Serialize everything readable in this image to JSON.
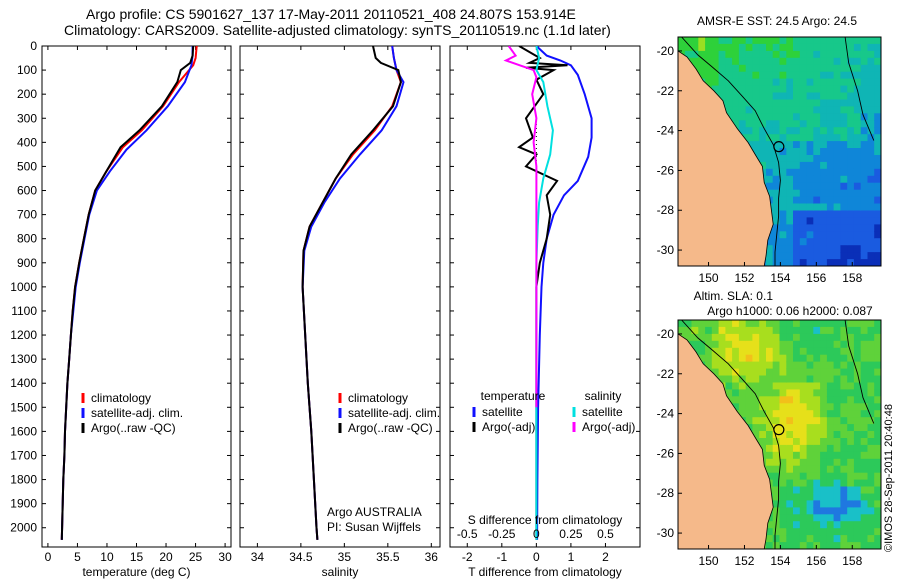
{
  "figure": {
    "title_line1": "Argo profile: CS 5901627_137 17-May-2011 20110521_408 24.807S 153.914E",
    "title_line2": "Climatology: CARS2009. Satellite-adjusted climatology: synTS_20110519.nc (1.1d later)",
    "footer": "©IMOS 28-Sep-2011 20:40:48"
  },
  "colors": {
    "climatology": "#ff0000",
    "satellite": "#1010ff",
    "argo": "#000000",
    "salinity_satellite": "#00e0e0",
    "salinity_argo": "#ff00ff",
    "land": "#f5b98a"
  },
  "chart_data": [
    {
      "type": "line",
      "id": "temperature",
      "xlabel": "temperature (deg C)",
      "ylabel": "",
      "xlim": [
        -1,
        31
      ],
      "ylim": [
        2080,
        0
      ],
      "xticks": [
        "0",
        "5",
        "10",
        "15",
        "20",
        "25",
        "30"
      ],
      "yticks": [
        "0",
        "100",
        "200",
        "300",
        "400",
        "500",
        "600",
        "700",
        "800",
        "900",
        "1000",
        "1100",
        "1200",
        "1300",
        "1400",
        "1500",
        "1600",
        "1700",
        "1800",
        "1900",
        "2000"
      ],
      "legend": {
        "position": "lower-middle",
        "entries": [
          "climatology",
          "satellite-adj. clim.",
          "Argo(..raw -QC)"
        ]
      },
      "series": [
        {
          "name": "climatology",
          "color": "#ff0000",
          "points": [
            [
              25.2,
              0
            ],
            [
              25.0,
              50
            ],
            [
              24.6,
              80
            ],
            [
              22.2,
              150
            ],
            [
              19.5,
              250
            ],
            [
              15.9,
              350
            ],
            [
              12.7,
              420
            ],
            [
              9.9,
              520
            ],
            [
              8.0,
              600
            ],
            [
              6.9,
              700
            ],
            [
              6.1,
              800
            ],
            [
              5.3,
              900
            ],
            [
              4.6,
              1000
            ],
            [
              4.2,
              1100
            ],
            [
              3.9,
              1200
            ],
            [
              3.6,
              1300
            ],
            [
              3.3,
              1400
            ],
            [
              3.1,
              1500
            ],
            [
              2.9,
              1600
            ],
            [
              2.8,
              1700
            ],
            [
              2.6,
              1800
            ],
            [
              2.5,
              1900
            ],
            [
              2.4,
              2000
            ],
            [
              2.35,
              2050
            ]
          ]
        },
        {
          "name": "satellite-adj. clim.",
          "color": "#1010ff",
          "points": [
            [
              24.5,
              0
            ],
            [
              24.5,
              40
            ],
            [
              24.3,
              80
            ],
            [
              23.2,
              150
            ],
            [
              20.3,
              250
            ],
            [
              16.7,
              350
            ],
            [
              13.3,
              430
            ],
            [
              10.5,
              520
            ],
            [
              8.3,
              600
            ],
            [
              7.0,
              700
            ],
            [
              6.2,
              800
            ],
            [
              5.4,
              900
            ],
            [
              4.7,
              1000
            ],
            [
              4.3,
              1100
            ],
            [
              3.9,
              1200
            ],
            [
              3.6,
              1300
            ],
            [
              3.3,
              1400
            ],
            [
              3.1,
              1500
            ],
            [
              2.9,
              1600
            ],
            [
              2.8,
              1700
            ],
            [
              2.6,
              1800
            ],
            [
              2.5,
              1900
            ],
            [
              2.4,
              2000
            ],
            [
              2.35,
              2050
            ]
          ]
        },
        {
          "name": "Argo(..raw -QC)",
          "color": "#000000",
          "points": [
            [
              24.6,
              0
            ],
            [
              24.5,
              40
            ],
            [
              24.1,
              70
            ],
            [
              22.5,
              100
            ],
            [
              21.9,
              150
            ],
            [
              19.3,
              250
            ],
            [
              15.5,
              350
            ],
            [
              12.3,
              420
            ],
            [
              9.9,
              520
            ],
            [
              8.0,
              600
            ],
            [
              6.9,
              700
            ],
            [
              6.1,
              800
            ],
            [
              5.3,
              900
            ],
            [
              4.6,
              1000
            ],
            [
              4.2,
              1100
            ],
            [
              3.9,
              1200
            ],
            [
              3.6,
              1300
            ],
            [
              3.3,
              1400
            ],
            [
              3.1,
              1500
            ],
            [
              2.9,
              1600
            ],
            [
              2.8,
              1700
            ],
            [
              2.6,
              1800
            ],
            [
              2.5,
              1900
            ],
            [
              2.4,
              2000
            ],
            [
              2.35,
              2050
            ]
          ]
        }
      ]
    },
    {
      "type": "line",
      "id": "salinity",
      "xlabel": "salinity",
      "ylabel": "",
      "xlim": [
        33.8,
        36.1
      ],
      "ylim": [
        2080,
        0
      ],
      "xticks": [
        "34",
        "34.5",
        "35",
        "35.5",
        "36"
      ],
      "legend": {
        "position": "lower-middle",
        "entries": [
          "climatology",
          "satellite-adj. clim.",
          "Argo(..raw -QC)"
        ]
      },
      "annotation": [
        "Argo AUSTRALIA",
        "PI: Susan Wijffels"
      ],
      "series": [
        {
          "name": "climatology",
          "color": "#ff0000",
          "points": [
            [
              35.55,
              0
            ],
            [
              35.57,
              50
            ],
            [
              35.6,
              100
            ],
            [
              35.65,
              150
            ],
            [
              35.55,
              250
            ],
            [
              35.35,
              350
            ],
            [
              35.1,
              450
            ],
            [
              34.9,
              550
            ],
            [
              34.75,
              650
            ],
            [
              34.6,
              750
            ],
            [
              34.53,
              850
            ],
            [
              34.52,
              1000
            ],
            [
              34.55,
              1200
            ],
            [
              34.58,
              1400
            ],
            [
              34.62,
              1600
            ],
            [
              34.65,
              1800
            ],
            [
              34.68,
              2000
            ],
            [
              34.69,
              2050
            ]
          ]
        },
        {
          "name": "satellite-adj. clim.",
          "color": "#1010ff",
          "points": [
            [
              35.55,
              0
            ],
            [
              35.57,
              50
            ],
            [
              35.6,
              100
            ],
            [
              35.68,
              150
            ],
            [
              35.6,
              250
            ],
            [
              35.43,
              350
            ],
            [
              35.18,
              450
            ],
            [
              34.95,
              550
            ],
            [
              34.77,
              650
            ],
            [
              34.62,
              750
            ],
            [
              34.54,
              850
            ],
            [
              34.52,
              1000
            ],
            [
              34.55,
              1200
            ],
            [
              34.58,
              1400
            ],
            [
              34.62,
              1600
            ],
            [
              34.65,
              1800
            ],
            [
              34.68,
              2000
            ],
            [
              34.69,
              2050
            ]
          ]
        },
        {
          "name": "Argo(..raw -QC)",
          "color": "#000000",
          "points": [
            [
              35.33,
              0
            ],
            [
              35.36,
              50
            ],
            [
              35.42,
              70
            ],
            [
              35.62,
              100
            ],
            [
              35.65,
              150
            ],
            [
              35.56,
              250
            ],
            [
              35.33,
              350
            ],
            [
              35.08,
              450
            ],
            [
              34.9,
              550
            ],
            [
              34.75,
              650
            ],
            [
              34.6,
              750
            ],
            [
              34.53,
              850
            ],
            [
              34.52,
              1000
            ],
            [
              34.55,
              1200
            ],
            [
              34.58,
              1400
            ],
            [
              34.62,
              1600
            ],
            [
              34.65,
              1800
            ],
            [
              34.68,
              2000
            ],
            [
              34.69,
              2050
            ]
          ]
        }
      ]
    },
    {
      "type": "line",
      "id": "difference",
      "xlabel": "T difference from climatology",
      "x2label": "S difference from climatology",
      "xlim": [
        -2.5,
        3
      ],
      "x2lim": [
        -0.625,
        0.75
      ],
      "ylim": [
        2080,
        0
      ],
      "xticks": [
        "-2",
        "-1",
        "0",
        "1",
        "2"
      ],
      "x2ticks": [
        "-0.5",
        "-0.25",
        "0",
        "0.25",
        "0.5"
      ],
      "legend_temperature": {
        "position": "lower-left",
        "title": "temperature",
        "entries": [
          "satellite",
          "Argo(-adj)"
        ]
      },
      "legend_salinity": {
        "position": "lower-right",
        "title": "salinity",
        "entries": [
          "satellite",
          "Argo(-adj)"
        ]
      },
      "series": [
        {
          "name": "satellite",
          "group": "temperature",
          "color": "#1010ff",
          "points": [
            [
              0.0,
              0
            ],
            [
              0.3,
              40
            ],
            [
              0.7,
              60
            ],
            [
              1.0,
              80
            ],
            [
              1.2,
              120
            ],
            [
              1.4,
              200
            ],
            [
              1.6,
              300
            ],
            [
              1.6,
              380
            ],
            [
              1.5,
              460
            ],
            [
              1.2,
              560
            ],
            [
              0.8,
              620
            ],
            [
              0.5,
              700
            ],
            [
              0.3,
              800
            ],
            [
              0.2,
              900
            ],
            [
              0.15,
              1000
            ],
            [
              0.1,
              1200
            ],
            [
              0.05,
              1500
            ],
            [
              0.03,
              1800
            ],
            [
              0.02,
              2050
            ]
          ]
        },
        {
          "name": "Argo(-adj)",
          "group": "temperature",
          "color": "#000000",
          "points": [
            [
              -0.5,
              0
            ],
            [
              0.1,
              50
            ],
            [
              -0.2,
              70
            ],
            [
              0.9,
              80
            ],
            [
              -0.3,
              90
            ],
            [
              0.5,
              100
            ],
            [
              0.0,
              140
            ],
            [
              0.2,
              200
            ],
            [
              -0.3,
              300
            ],
            [
              -0.1,
              380
            ],
            [
              -0.5,
              420
            ],
            [
              0.0,
              450
            ],
            [
              -0.3,
              500
            ],
            [
              0.6,
              560
            ],
            [
              0.3,
              620
            ],
            [
              0.4,
              700
            ],
            [
              0.3,
              800
            ],
            [
              0.1,
              900
            ],
            [
              0.0,
              1000
            ],
            [
              0.0,
              1500
            ],
            [
              0.0,
              2050
            ]
          ]
        },
        {
          "name": "satellite",
          "group": "salinity",
          "color": "#00e0e0",
          "points": [
            [
              0.0,
              0
            ],
            [
              0.02,
              50
            ],
            [
              0.0,
              100
            ],
            [
              0.05,
              150
            ],
            [
              0.08,
              250
            ],
            [
              0.12,
              350
            ],
            [
              0.1,
              450
            ],
            [
              0.05,
              550
            ],
            [
              0.02,
              650
            ],
            [
              0.01,
              750
            ],
            [
              0.0,
              900
            ],
            [
              0.0,
              1500
            ],
            [
              0.0,
              2050
            ]
          ]
        },
        {
          "name": "Argo(-adj)",
          "group": "salinity",
          "color": "#ff00ff",
          "points": [
            [
              -0.2,
              0
            ],
            [
              -0.15,
              40
            ],
            [
              -0.22,
              60
            ],
            [
              -0.12,
              80
            ],
            [
              -0.02,
              100
            ],
            [
              0.0,
              130
            ],
            [
              -0.03,
              200
            ],
            [
              0.0,
              300
            ],
            [
              -0.02,
              400
            ],
            [
              0.0,
              500
            ],
            [
              0.0,
              1400
            ],
            [
              0.0,
              1500
            ]
          ]
        }
      ]
    },
    {
      "type": "heatmap",
      "id": "sst_map",
      "title": "AMSR-E SST: 24.5 Argo: 24.5",
      "xticks": [
        "150",
        "152",
        "154",
        "156",
        "158"
      ],
      "yticks": [
        "-20",
        "-22",
        "-24",
        "-26",
        "-28",
        "-30"
      ],
      "xlim": [
        148.3,
        159.6
      ],
      "ylim": [
        -30.8,
        -19.3
      ],
      "argo_position": [
        153.914,
        -24.807
      ]
    },
    {
      "type": "heatmap",
      "id": "sla_map",
      "title_line1": "Altim. SLA: 0.1",
      "title_line2": "Argo h1000: 0.06 h2000: 0.087",
      "xticks": [
        "150",
        "152",
        "154",
        "156",
        "158"
      ],
      "yticks": [
        "-20",
        "-22",
        "-24",
        "-26",
        "-28",
        "-30"
      ],
      "xlim": [
        148.3,
        159.6
      ],
      "ylim": [
        -30.8,
        -19.3
      ],
      "argo_position": [
        153.914,
        -24.807
      ]
    }
  ]
}
